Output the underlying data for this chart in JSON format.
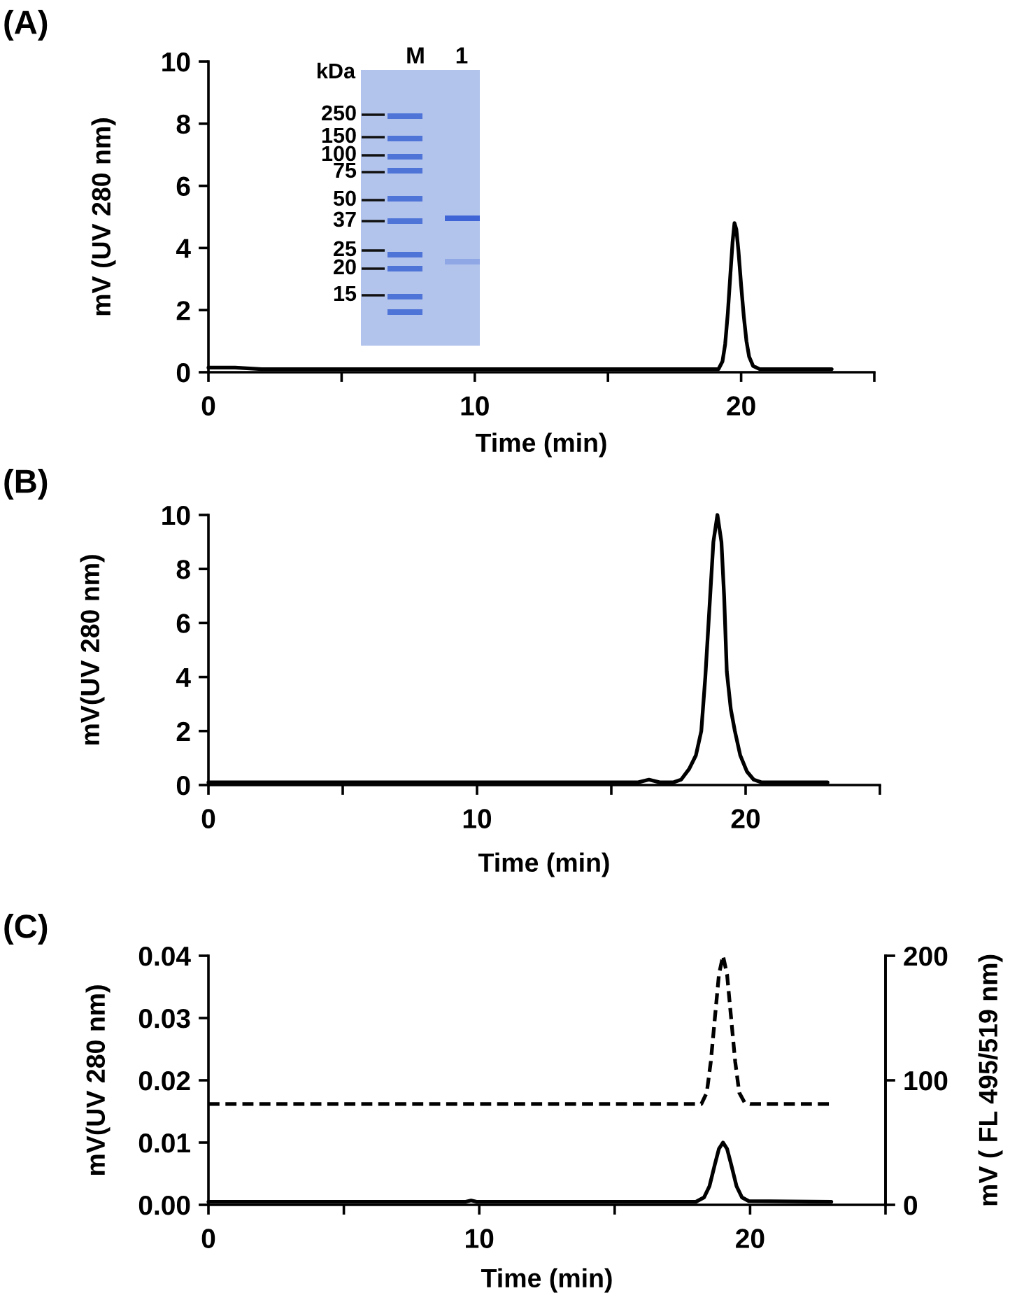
{
  "chart_data": [
    {
      "type": "line",
      "title": "(A)",
      "xlabel": "Time (min)",
      "ylabel": "mV (UV 280 nm)",
      "xlim": [
        0,
        25
      ],
      "xticks": [
        0,
        {
          "value": 5,
          "label": null
        },
        10,
        {
          "value": 15,
          "label": null
        },
        20,
        {
          "value": 25,
          "label": null
        }
      ],
      "ylim": [
        0,
        10
      ],
      "yticks": [
        0,
        2,
        4,
        6,
        8,
        10
      ],
      "annotations": [
        "kDa",
        "M",
        "1",
        "250",
        "150",
        "100",
        "75",
        "50",
        "37",
        "25",
        "20",
        "15"
      ],
      "series": [
        {
          "color": "#000000",
          "line_style": "solid",
          "x": [
            0,
            1,
            2,
            3,
            5,
            8,
            12,
            15,
            18,
            19.0,
            19.15,
            19.3,
            19.4,
            19.5,
            19.6,
            19.68,
            19.75,
            19.82,
            19.9,
            20.0,
            20.1,
            20.2,
            20.3,
            20.45,
            20.7,
            21.5,
            23.4
          ],
          "values": [
            0.15,
            0.15,
            0.1,
            0.1,
            0.1,
            0.1,
            0.1,
            0.1,
            0.1,
            0.1,
            0.1,
            0.35,
            0.9,
            1.9,
            3.2,
            4.2,
            4.8,
            4.6,
            3.9,
            2.8,
            1.8,
            1.0,
            0.5,
            0.2,
            0.1,
            0.1,
            0.1
          ]
        }
      ]
    },
    {
      "type": "line",
      "title": "(B)",
      "xlabel": "Time (min)",
      "ylabel": "mV(UV 280 nm)",
      "xlim": [
        0,
        25
      ],
      "xticks": [
        0,
        {
          "value": 5,
          "label": null
        },
        10,
        {
          "value": 15,
          "label": null
        },
        20,
        {
          "value": 25,
          "label": null
        }
      ],
      "ylim": [
        0,
        10
      ],
      "yticks": [
        0,
        2,
        4,
        6,
        8,
        10
      ],
      "series": [
        {
          "color": "#000000",
          "line_style": "solid",
          "x": [
            0,
            5,
            10,
            15,
            16.0,
            16.4,
            16.8,
            17.3,
            17.6,
            17.9,
            18.15,
            18.35,
            18.5,
            18.65,
            18.8,
            18.95,
            19.1,
            19.2,
            19.3,
            19.45,
            19.6,
            19.8,
            20.05,
            20.3,
            20.6,
            21.5,
            23.05
          ],
          "values": [
            0.1,
            0.1,
            0.1,
            0.1,
            0.1,
            0.2,
            0.1,
            0.1,
            0.2,
            0.6,
            1.1,
            2.0,
            4.0,
            6.5,
            9.0,
            10,
            9.0,
            7.0,
            4.2,
            2.8,
            2.0,
            1.1,
            0.5,
            0.2,
            0.1,
            0.1,
            0.1
          ]
        }
      ]
    },
    {
      "type": "line",
      "title": "(C)",
      "xlabel": "Time (min)",
      "ylabel": "mV(UV 280 nm)",
      "y2label": "mV ( FL 495/519 nm)",
      "xlim": [
        0,
        25
      ],
      "xticks": [
        0,
        {
          "value": 5,
          "label": null
        },
        10,
        {
          "value": 15,
          "label": null
        },
        20,
        {
          "value": 25,
          "label": null
        }
      ],
      "ylim": [
        0,
        0.04
      ],
      "yticks": [
        {
          "value": 0,
          "label": "0.00"
        },
        {
          "value": 0.01,
          "label": "0.01"
        },
        {
          "value": 0.02,
          "label": "0.02"
        },
        {
          "value": 0.03,
          "label": "0.03"
        },
        {
          "value": 0.04,
          "label": "0.04"
        }
      ],
      "y2lim": [
        0,
        200
      ],
      "y2ticks": [
        0,
        100,
        200
      ],
      "series": [
        {
          "color": "#000000",
          "line_style": "solid",
          "x": [
            0,
            5,
            9.5,
            9.7,
            9.9,
            15,
            18.0,
            18.3,
            18.5,
            18.7,
            18.85,
            19.0,
            19.15,
            19.3,
            19.5,
            19.7,
            19.95,
            23.0
          ],
          "values": [
            0.0005,
            0.0005,
            0.0005,
            0.0007,
            0.0005,
            0.0005,
            0.0005,
            0.0012,
            0.003,
            0.0065,
            0.009,
            0.01,
            0.009,
            0.0065,
            0.003,
            0.0012,
            0.0006,
            0.0005
          ]
        },
        {
          "color": "#000000",
          "line_style": "dashed",
          "axis": "y2",
          "x": [
            0,
            10,
            18.2,
            18.4,
            18.55,
            18.7,
            18.85,
            19.0,
            19.15,
            19.3,
            19.45,
            19.6,
            19.8,
            20.0,
            23.0
          ],
          "values": [
            81,
            81,
            81,
            90,
            115,
            150,
            185,
            200,
            185,
            150,
            115,
            90,
            82,
            81,
            81
          ]
        }
      ]
    }
  ]
}
